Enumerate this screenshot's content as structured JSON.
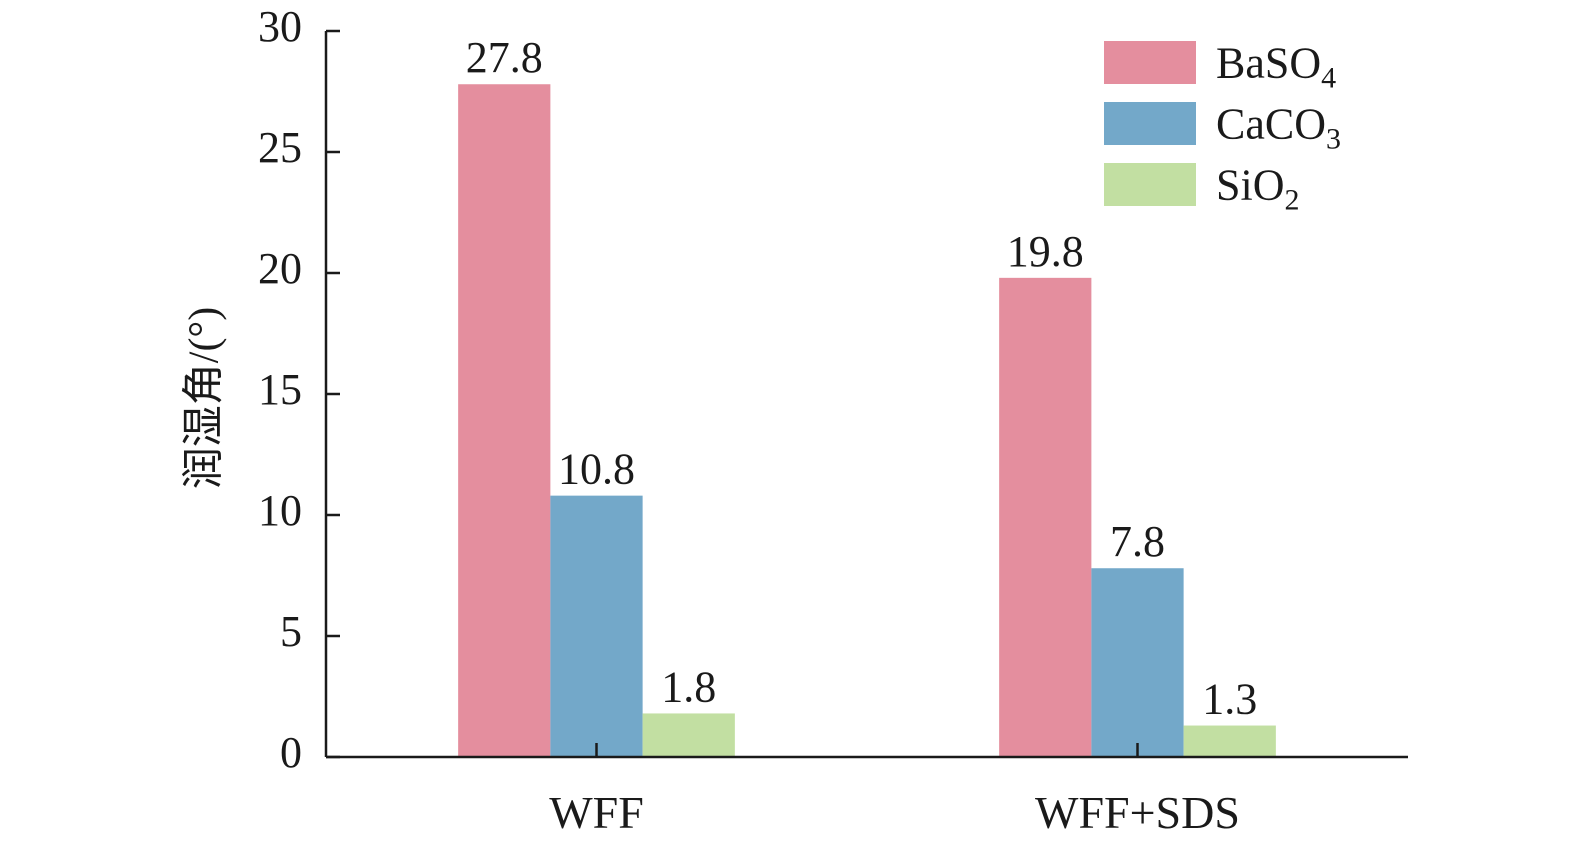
{
  "chart_data": {
    "type": "bar",
    "title": "",
    "xlabel": "",
    "ylabel": "润湿角/(°)",
    "ylim": [
      0,
      30
    ],
    "yticks": [
      0,
      5,
      10,
      15,
      20,
      25,
      30
    ],
    "grid": false,
    "legend_position": "top-right",
    "categories": [
      "WFF",
      "WFF+SDS"
    ],
    "series": [
      {
        "name": "BaSO",
        "subscript": "4",
        "color": "#e48e9e",
        "values": [
          27.8,
          19.8
        ],
        "labels": [
          "27.8",
          "19.8"
        ]
      },
      {
        "name": "CaCO",
        "subscript": "3",
        "color": "#73a8c9",
        "values": [
          10.8,
          7.8
        ],
        "labels": [
          "10.8",
          "7.8"
        ]
      },
      {
        "name": "SiO",
        "subscript": "2",
        "color": "#c2dfa2",
        "values": [
          1.8,
          1.3
        ],
        "labels": [
          "1.8",
          "1.3"
        ]
      }
    ]
  }
}
